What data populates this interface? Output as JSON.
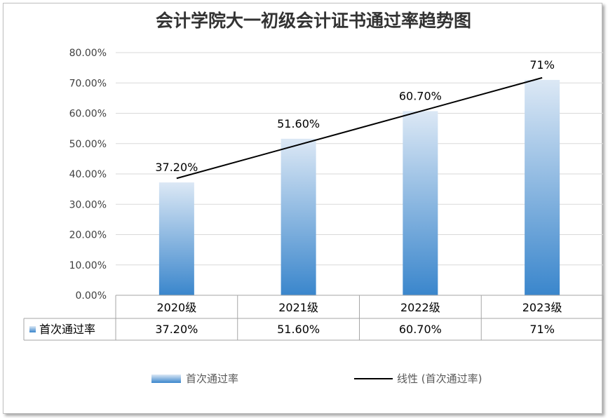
{
  "chart_data": {
    "type": "bar",
    "title": "会计学院大一初级会计证书通过率趋势图",
    "categories": [
      "2020级",
      "2021级",
      "2022级",
      "2023级"
    ],
    "series": [
      {
        "name": "首次通过率",
        "values": [
          37.2,
          51.6,
          60.7,
          71
        ],
        "labels": [
          "37.20%",
          "51.60%",
          "60.70%",
          "71%"
        ],
        "gradient": [
          "#dce8f5",
          "#3a86cc"
        ]
      }
    ],
    "trendline": {
      "name": "线性 (首次通过率)",
      "type": "linear",
      "color": "#000000"
    },
    "ylim": [
      0,
      80
    ],
    "yticks": [
      "0.00%",
      "10.00%",
      "20.00%",
      "30.00%",
      "40.00%",
      "50.00%",
      "60.00%",
      "70.00%",
      "80.00%"
    ],
    "grid": true,
    "data_table": true,
    "legend_position": "bottom"
  }
}
